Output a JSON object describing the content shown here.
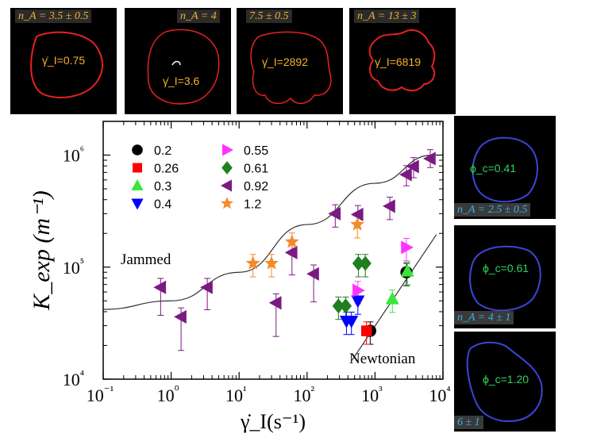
{
  "top_panels": [
    {
      "tag": "n_A = 3.5 ± 0.5",
      "rate": "γ̇_I=0.75"
    },
    {
      "tag": "n_A = 4",
      "rate": "γ̇_I=3.6"
    },
    {
      "tag": "7.5 ± 0.5",
      "rate": "γ̇_I=2892"
    },
    {
      "tag": "n_A = 13 ± 3",
      "rate": "γ̇_I=6819"
    }
  ],
  "side_panels": [
    {
      "tag": "n_A = 2.5 ± 0.5",
      "phi": "ϕ_c=0.41"
    },
    {
      "tag": "n_A = 4 ± 1",
      "phi": "ϕ_c=0.61"
    },
    {
      "tag": "6 ± 1",
      "phi": "ϕ_c=1.20"
    }
  ],
  "colors": {
    "black": "#000000",
    "red": "#ff0000",
    "green": "#39e639",
    "blue": "#0000ff",
    "magenta": "#ff33ff",
    "darkgreen": "#1f7f1f",
    "purple": "#7b1a82",
    "orange": "#f58a2a",
    "contour_red": "#e82020",
    "contour_blue": "#3b46d8"
  },
  "chart_data": {
    "type": "scatter",
    "xlabel": "γ̇_I(s⁻¹)",
    "ylabel": "K_exp (m⁻¹)",
    "xscale": "log",
    "yscale": "log",
    "xlim": [
      0.1,
      10000
    ],
    "ylim": [
      10000,
      2000000
    ],
    "xticks": [
      "10⁻¹",
      "10⁰",
      "10¹",
      "10²",
      "10³",
      "10⁴"
    ],
    "yticks": [
      "10⁴",
      "10⁵",
      "10⁶"
    ],
    "legend_position": "top-left",
    "annotations": [
      "Jammed",
      "Newtonian"
    ],
    "series": [
      {
        "name": "0.2",
        "marker": "circle",
        "color": "black",
        "points": [
          [
            850,
            27000
          ],
          [
            2900,
            90000
          ]
        ]
      },
      {
        "name": "0.26",
        "marker": "square",
        "color": "red",
        "points": [
          [
            750,
            27000
          ]
        ]
      },
      {
        "name": "0.3",
        "marker": "triangle-up",
        "color": "green",
        "points": [
          [
            1800,
            52000
          ],
          [
            3000,
            92000
          ]
        ]
      },
      {
        "name": "0.4",
        "marker": "triangle-down",
        "color": "blue",
        "points": [
          [
            380,
            33000
          ],
          [
            450,
            33000
          ],
          [
            560,
            50000
          ]
        ]
      },
      {
        "name": "0.55",
        "marker": "triangle-right",
        "color": "magenta",
        "points": [
          [
            560,
            62000
          ],
          [
            2900,
            150000
          ]
        ]
      },
      {
        "name": "0.61",
        "marker": "diamond",
        "color": "darkgreen",
        "points": [
          [
            290,
            45000
          ],
          [
            370,
            45000
          ],
          [
            570,
            108000
          ],
          [
            720,
            108000
          ]
        ]
      },
      {
        "name": "0.92",
        "marker": "triangle-left",
        "color": "purple",
        "points": [
          [
            0.7,
            66000
          ],
          [
            1.4,
            36000
          ],
          [
            3.4,
            66000
          ],
          [
            35,
            48000
          ],
          [
            60,
            135000
          ],
          [
            125,
            87000
          ],
          [
            260,
            300000
          ],
          [
            560,
            295000
          ],
          [
            1650,
            350000
          ],
          [
            2900,
            670000
          ],
          [
            3700,
            790000
          ],
          [
            6500,
            930000
          ]
        ],
        "err_low": [
          0.25,
          0.3,
          0.2,
          0.3,
          0.2,
          0.25,
          0.12,
          0.12,
          0.12,
          0.1,
          0.1,
          0.08
        ]
      },
      {
        "name": "1.2",
        "marker": "star",
        "color": "orange",
        "points": [
          [
            16,
            108000
          ],
          [
            30,
            108000
          ],
          [
            60,
            168000
          ],
          [
            550,
            240000
          ]
        ]
      }
    ],
    "curves": [
      {
        "label": "Jammed",
        "points": [
          [
            0.1,
            42000
          ],
          [
            1,
            50000
          ],
          [
            10,
            90000
          ],
          [
            100,
            240000
          ],
          [
            1000,
            560000
          ],
          [
            7000,
            1000000
          ]
        ]
      },
      {
        "label": "Newtonian",
        "points": [
          [
            450,
            14500
          ],
          [
            8000,
            195000
          ]
        ]
      }
    ]
  }
}
